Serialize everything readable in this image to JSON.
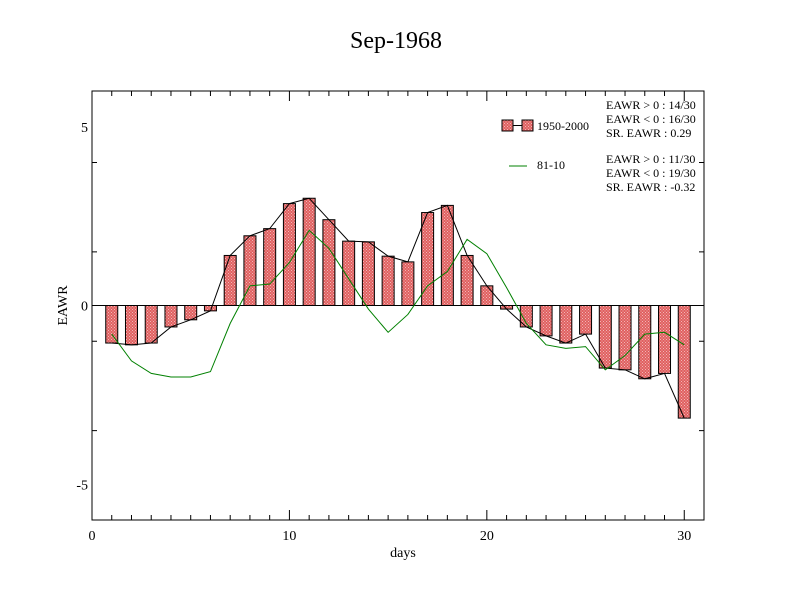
{
  "chart_data": {
    "type": "bar",
    "title": "Sep-1968",
    "xlabel": "days",
    "ylabel": "EAWR",
    "xlim": [
      0,
      31
    ],
    "ylim": [
      -6,
      6
    ],
    "xticks": [
      0,
      10,
      20,
      30
    ],
    "yticks": [
      -5,
      0,
      5
    ],
    "grid": false,
    "legend_position": "top-right",
    "x": [
      1,
      2,
      3,
      4,
      5,
      6,
      7,
      8,
      9,
      10,
      11,
      12,
      13,
      14,
      15,
      16,
      17,
      18,
      19,
      20,
      21,
      22,
      23,
      24,
      25,
      26,
      27,
      28,
      29,
      30
    ],
    "series": [
      {
        "name": "1950-2000",
        "kind": "bar+line",
        "color": "#e06060",
        "values": [
          -1.05,
          -1.1,
          -1.05,
          -0.6,
          -0.4,
          -0.15,
          1.4,
          1.95,
          2.15,
          2.85,
          3.0,
          2.4,
          1.8,
          1.78,
          1.38,
          1.22,
          2.6,
          2.8,
          1.4,
          0.55,
          -0.1,
          -0.6,
          -0.85,
          -1.05,
          -0.8,
          -1.75,
          -1.8,
          -2.05,
          -1.9,
          -3.15
        ]
      },
      {
        "name": "81-10",
        "kind": "line",
        "color": "#008000",
        "values": [
          -0.8,
          -1.55,
          -1.9,
          -2.0,
          -2.0,
          -1.85,
          -0.5,
          0.55,
          0.6,
          1.2,
          2.1,
          1.6,
          0.75,
          -0.1,
          -0.75,
          -0.25,
          0.55,
          0.95,
          1.85,
          1.45,
          0.5,
          -0.5,
          -1.1,
          -1.2,
          -1.15,
          -1.8,
          -1.4,
          -0.8,
          -0.75,
          -1.1
        ]
      }
    ],
    "annotations": {
      "group1": [
        "EAWR > 0 : 14/30",
        "EAWR < 0 : 16/30",
        "SR. EAWR :  0.29"
      ],
      "group2": [
        "EAWR > 0 : 11/30",
        "EAWR < 0 : 19/30",
        "SR. EAWR : -0.32"
      ]
    }
  }
}
